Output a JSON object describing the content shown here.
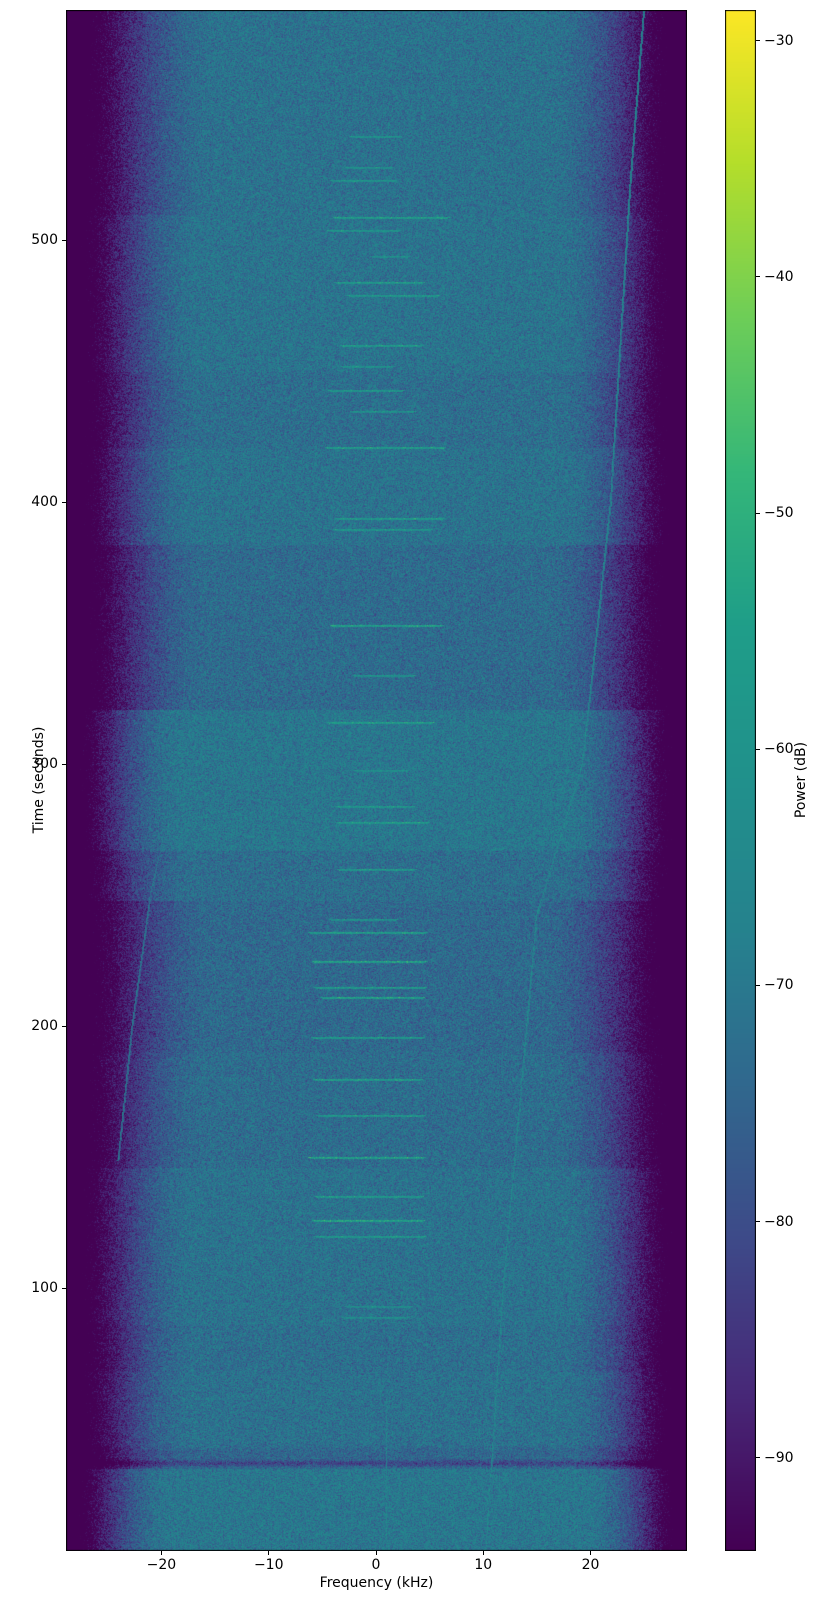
{
  "figure": {
    "background": "#ffffff",
    "axis_color": "#000000",
    "text_color": "#000000"
  },
  "chart_data": {
    "type": "heatmap",
    "subtype": "spectrogram",
    "title": "",
    "xlabel": "Frequency (kHz)",
    "ylabel": "Time (seconds)",
    "colorbar_label": "Power (dB)",
    "xlim": [
      -28.9,
      28.9
    ],
    "ylim": [
      0,
      588
    ],
    "clim": [
      -93.9,
      -28.7
    ],
    "x_ticks": [
      -20,
      -10,
      0,
      10,
      20
    ],
    "x_tick_labels": [
      "−20",
      "−10",
      "0",
      "10",
      "20"
    ],
    "y_ticks": [
      100,
      200,
      300,
      400,
      500
    ],
    "y_tick_labels": [
      "100",
      "200",
      "300",
      "400",
      "500"
    ],
    "colorbar_ticks": [
      -30,
      -40,
      -50,
      -60,
      -70,
      -80,
      -90
    ],
    "colorbar_tick_labels": [
      "−30",
      "−40",
      "−50",
      "−60",
      "−70",
      "−80",
      "−90"
    ],
    "grid": false,
    "legend": "none",
    "colormap": "viridis",
    "colormap_stops": [
      [
        0.0,
        68,
        1,
        84
      ],
      [
        0.1,
        72,
        40,
        120
      ],
      [
        0.2,
        62,
        74,
        137
      ],
      [
        0.3,
        49,
        104,
        142
      ],
      [
        0.4,
        38,
        130,
        142
      ],
      [
        0.5,
        33,
        145,
        140
      ],
      [
        0.6,
        31,
        158,
        137
      ],
      [
        0.7,
        53,
        183,
        121
      ],
      [
        0.8,
        110,
        206,
        88
      ],
      [
        0.9,
        181,
        222,
        43
      ],
      [
        1.0,
        253,
        231,
        37
      ]
    ],
    "noise_sigma_db": 3.8,
    "edge_model": {
      "attenuation_db": 40,
      "exponent": 1.8
    },
    "seed": 42,
    "background_segments_columns": [
      "t_start_s",
      "t_end_s",
      "base_db",
      "edge_width_left_px",
      "edge_width_right_px"
    ],
    "background_segments": [
      [
        0,
        31,
        -70.3,
        108,
        102
      ],
      [
        31,
        37,
        -72.5,
        124,
        118
      ],
      [
        37,
        68,
        -71.7,
        126,
        120
      ],
      [
        68,
        86,
        -72.3,
        132,
        126
      ],
      [
        86,
        146,
        -71.5,
        128,
        124
      ],
      [
        146,
        190,
        -72.8,
        140,
        136
      ],
      [
        190,
        248,
        -73.7,
        148,
        146
      ],
      [
        248,
        267,
        -72.6,
        128,
        126
      ],
      [
        267,
        321,
        -70.4,
        118,
        122
      ],
      [
        321,
        384,
        -73.2,
        142,
        140
      ],
      [
        384,
        421,
        -71.4,
        130,
        124
      ],
      [
        421,
        450,
        -72.4,
        138,
        130
      ],
      [
        450,
        510,
        -71.2,
        135,
        128
      ],
      [
        510,
        588,
        -71.6,
        150,
        138
      ]
    ],
    "center_streaks_columns": [
      "t_s",
      "f_start_kHz",
      "f_end_kHz",
      "power_db"
    ],
    "center_streaks": [
      [
        540,
        -2.5,
        2.3,
        -60
      ],
      [
        528,
        -2.9,
        1.6,
        -61
      ],
      [
        523,
        -4.3,
        1.9,
        -59
      ],
      [
        509,
        -4.0,
        6.8,
        -56
      ],
      [
        504,
        -4.6,
        2.2,
        -59
      ],
      [
        494,
        -0.6,
        3.1,
        -61
      ],
      [
        484,
        -3.9,
        4.5,
        -57
      ],
      [
        479,
        -2.7,
        5.9,
        -58
      ],
      [
        460,
        -3.4,
        4.4,
        -57
      ],
      [
        452,
        -3.3,
        1.7,
        -60
      ],
      [
        443,
        -4.5,
        2.6,
        -58
      ],
      [
        435,
        -2.4,
        3.6,
        -60
      ],
      [
        421,
        -4.8,
        6.4,
        -56
      ],
      [
        394,
        -3.8,
        6.3,
        -57
      ],
      [
        390,
        -4.0,
        5.2,
        -59
      ],
      [
        353,
        -4.3,
        6.2,
        -55
      ],
      [
        334,
        -2.2,
        3.6,
        -60
      ],
      [
        316,
        -4.6,
        5.4,
        -56
      ],
      [
        298,
        -2.1,
        3.0,
        -61
      ],
      [
        284,
        -3.7,
        3.5,
        -58
      ],
      [
        278,
        -3.8,
        4.9,
        -57
      ],
      [
        260,
        -3.6,
        3.7,
        -58
      ],
      [
        241,
        -4.4,
        2.0,
        -60
      ],
      [
        236,
        -6.3,
        4.8,
        -56
      ],
      [
        225,
        -6.0,
        4.8,
        -54
      ],
      [
        215,
        -5.8,
        4.7,
        -57
      ],
      [
        211,
        -5.2,
        4.5,
        -55
      ],
      [
        196,
        -6.1,
        4.5,
        -57
      ],
      [
        180,
        -5.9,
        4.3,
        -56
      ],
      [
        166,
        -5.6,
        4.6,
        -58
      ],
      [
        150,
        -6.3,
        4.6,
        -55
      ],
      [
        135,
        -5.7,
        4.4,
        -57
      ],
      [
        126,
        -6.0,
        4.5,
        -54
      ],
      [
        120,
        -5.8,
        4.6,
        -58
      ],
      [
        93,
        -2.9,
        3.4,
        -62
      ],
      [
        89,
        -3.2,
        3.1,
        -62
      ]
    ],
    "drift_lines": [
      {
        "t": [
          588,
          520,
          400,
          300,
          242,
          200,
          100,
          0
        ],
        "f": [
          24.9,
          23.6,
          21.8,
          19.2,
          14.9,
          14.0,
          11.8,
          10.2
        ],
        "power_db": -66
      },
      {
        "t": [
          348,
          303,
          250,
          200,
          149
        ],
        "f": [
          -17.7,
          -18.2,
          -21.1,
          -22.8,
          -24.1
        ],
        "power_db": -71.5
      }
    ],
    "vertical_streaks": [
      {
        "f": 0.9,
        "t0": 0,
        "t1": 58,
        "power_db": -67
      }
    ],
    "dark_bands": [
      {
        "t": 33.3,
        "half_width_s": 1.3,
        "depth_db": 9
      },
      {
        "t": 37.5,
        "half_width_s": 2.2,
        "depth_db": 3
      }
    ]
  }
}
